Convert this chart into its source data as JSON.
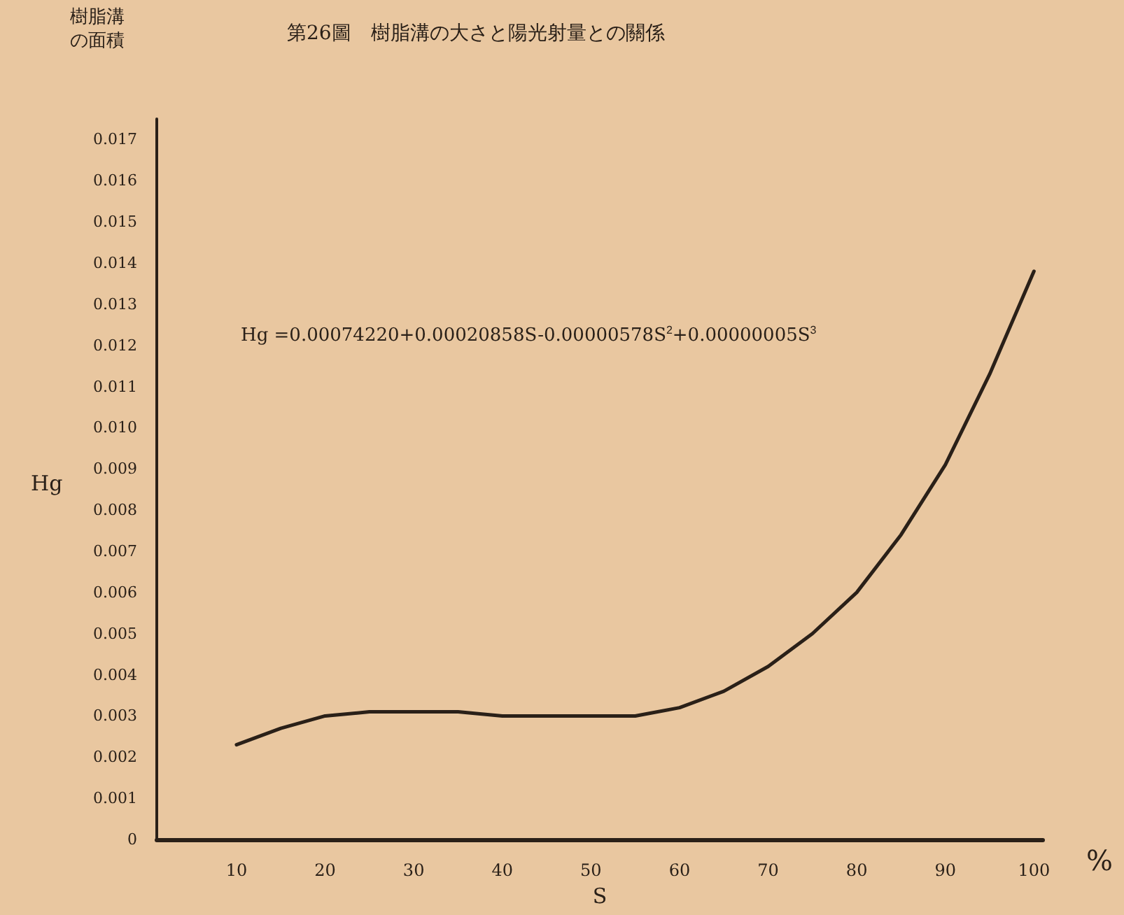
{
  "chart_data": {
    "type": "line",
    "title": "第26圖　樹脂溝の大さと陽光射量との關係",
    "ylabel": "樹脂溝の面積",
    "xlabel": "S",
    "annotations": [
      "Hg",
      "%",
      "Hg =0.00074220+0.00020858S-0.00000578S$^{2}$+0.00000005S$^{3}$"
    ],
    "x": [
      10,
      15,
      20,
      25,
      30,
      35,
      40,
      45,
      50,
      55,
      60,
      65,
      70,
      75,
      80,
      85,
      90,
      95,
      100
    ],
    "series": [
      {
        "color": "#2a2018",
        "values": [
          0.0023,
          0.0027,
          0.003,
          0.0031,
          0.0031,
          0.0031,
          0.003,
          0.003,
          0.003,
          0.003,
          0.0032,
          0.0036,
          0.0042,
          0.005,
          0.006,
          0.0074,
          0.0091,
          0.0113,
          0.0138
        ]
      }
    ],
    "xlim": [
      1,
      101
    ],
    "xticks": [
      10,
      20,
      30,
      40,
      50,
      60,
      70,
      80,
      90,
      100
    ],
    "ylim": [
      0,
      0.0175
    ],
    "yticks": [
      {
        "value": 0,
        "label": "0"
      },
      {
        "value": 0.001,
        "label": "0.001"
      },
      {
        "value": 0.002,
        "label": "0.002"
      },
      {
        "value": 0.003,
        "label": "0.003"
      },
      {
        "value": 0.004,
        "label": "0.004"
      },
      {
        "value": 0.005,
        "label": "0.005"
      },
      {
        "value": 0.006,
        "label": "0.006"
      },
      {
        "value": 0.007,
        "label": "0.007"
      },
      {
        "value": 0.008,
        "label": "0.008"
      },
      {
        "value": 0.009,
        "label": "0.009"
      },
      {
        "value": 0.01,
        "label": "0.010"
      },
      {
        "value": 0.011,
        "label": "0.011"
      },
      {
        "value": 0.012,
        "label": "0.012"
      },
      {
        "value": 0.013,
        "label": "0.013"
      },
      {
        "value": 0.014,
        "label": "0.014"
      },
      {
        "value": 0.015,
        "label": "0.015"
      },
      {
        "value": 0.016,
        "label": "0.016"
      },
      {
        "value": 0.017,
        "label": "0.017"
      }
    ],
    "grid": false,
    "marker": "none",
    "line_style": "solid"
  }
}
